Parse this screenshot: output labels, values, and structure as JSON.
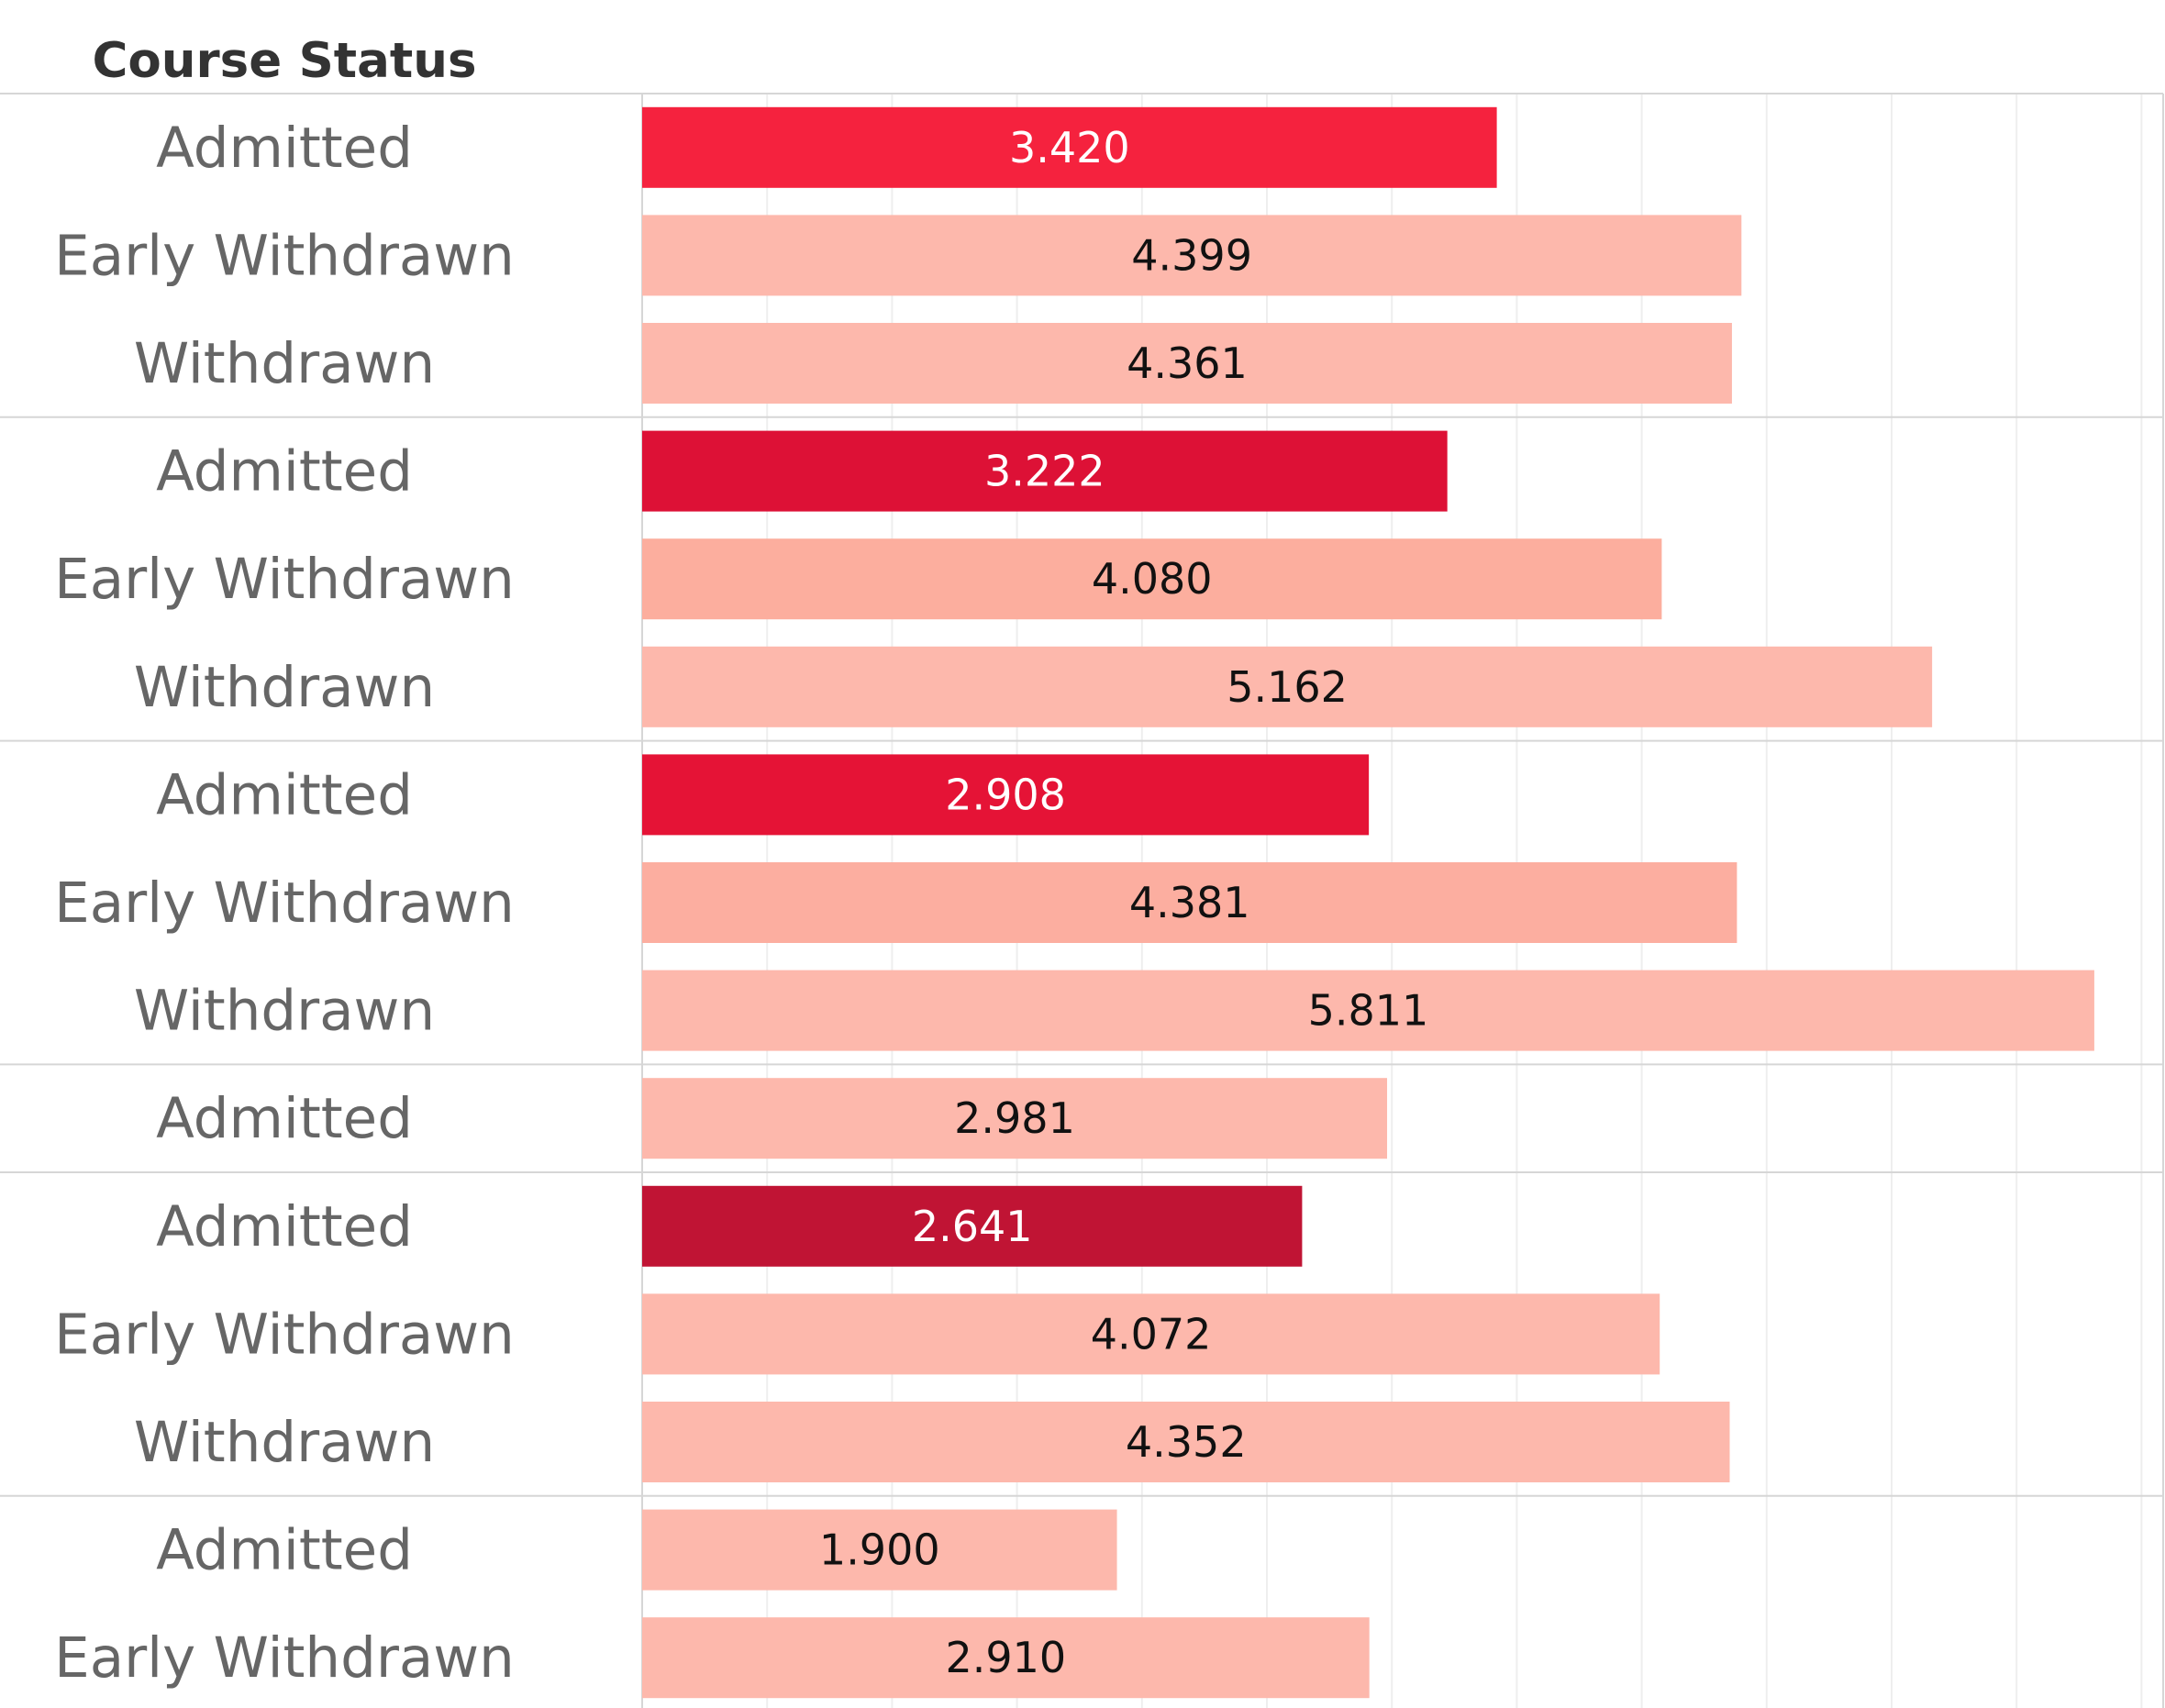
{
  "chart_data": {
    "type": "bar",
    "orientation": "horizontal",
    "row_header": "Course Status",
    "groups": [
      {
        "rows": [
          {
            "label": "Admitted",
            "value": 3.42,
            "value_label": "3.420",
            "color": "#f5223e",
            "highlight": true
          },
          {
            "label": "Early Withdrawn",
            "value": 4.399,
            "value_label": "4.399",
            "color": "#fdb8ac",
            "highlight": false
          },
          {
            "label": "Withdrawn",
            "value": 4.361,
            "value_label": "4.361",
            "color": "#fdb8ac",
            "highlight": false
          }
        ]
      },
      {
        "rows": [
          {
            "label": "Admitted",
            "value": 3.222,
            "value_label": "3.222",
            "color": "#dd1136",
            "highlight": true
          },
          {
            "label": "Early Withdrawn",
            "value": 4.08,
            "value_label": "4.080",
            "color": "#fcae9e",
            "highlight": false
          },
          {
            "label": "Withdrawn",
            "value": 5.162,
            "value_label": "5.162",
            "color": "#fdb8ac",
            "highlight": false
          }
        ]
      },
      {
        "rows": [
          {
            "label": "Admitted",
            "value": 2.908,
            "value_label": "2.908",
            "color": "#e51336",
            "highlight": true
          },
          {
            "label": "Early Withdrawn",
            "value": 4.381,
            "value_label": "4.381",
            "color": "#fcaea0",
            "highlight": false
          },
          {
            "label": "Withdrawn",
            "value": 5.811,
            "value_label": "5.811",
            "color": "#fdb8ac",
            "highlight": false
          }
        ]
      },
      {
        "rows": [
          {
            "label": "Admitted",
            "value": 2.981,
            "value_label": "2.981",
            "color": "#fdb8ac",
            "highlight": false
          }
        ]
      },
      {
        "rows": [
          {
            "label": "Admitted",
            "value": 2.641,
            "value_label": "2.641",
            "color": "#c01434",
            "highlight": true
          },
          {
            "label": "Early Withdrawn",
            "value": 4.072,
            "value_label": "4.072",
            "color": "#fdb8ac",
            "highlight": false
          },
          {
            "label": "Withdrawn",
            "value": 4.352,
            "value_label": "4.352",
            "color": "#fdb8ac",
            "highlight": false
          }
        ]
      },
      {
        "rows": [
          {
            "label": "Admitted",
            "value": 1.9,
            "value_label": "1.900",
            "color": "#fdb8ac",
            "highlight": false
          },
          {
            "label": "Early Withdrawn",
            "value": 2.91,
            "value_label": "2.910",
            "color": "#fdb8ac",
            "highlight": false
          }
        ]
      }
    ],
    "xlim": [
      0,
      6
    ],
    "grid": true,
    "colors": {
      "gridline": "#eeeeee",
      "separator": "#d6d6d6",
      "label_text": "#666666",
      "header_text": "#333333",
      "value_text_dark": "#111111",
      "value_text_light": "#ffffff"
    }
  }
}
